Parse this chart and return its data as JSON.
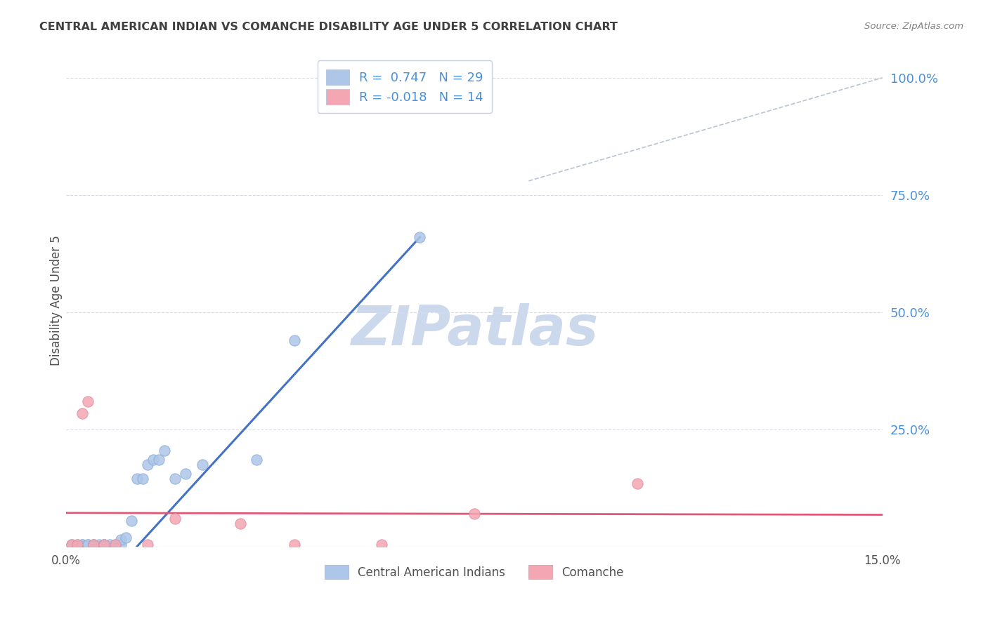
{
  "title": "CENTRAL AMERICAN INDIAN VS COMANCHE DISABILITY AGE UNDER 5 CORRELATION CHART",
  "source": "Source: ZipAtlas.com",
  "ylabel": "Disability Age Under 5",
  "right_yticks": [
    "100.0%",
    "75.0%",
    "50.0%",
    "25.0%"
  ],
  "right_ytick_vals": [
    1.0,
    0.75,
    0.5,
    0.25
  ],
  "legend1": [
    {
      "label": "R =  0.747   N = 29",
      "color": "#aec6e8"
    },
    {
      "label": "R = -0.018   N = 14",
      "color": "#f4a7b2"
    }
  ],
  "watermark": "ZIPatlas",
  "blue_scatter_x": [
    0.001,
    0.002,
    0.003,
    0.003,
    0.004,
    0.004,
    0.005,
    0.005,
    0.006,
    0.007,
    0.007,
    0.008,
    0.009,
    0.01,
    0.01,
    0.011,
    0.012,
    0.013,
    0.014,
    0.015,
    0.016,
    0.017,
    0.018,
    0.02,
    0.022,
    0.025,
    0.035,
    0.042,
    0.065
  ],
  "blue_scatter_y": [
    0.005,
    0.005,
    0.005,
    0.005,
    0.005,
    0.005,
    0.005,
    0.005,
    0.005,
    0.005,
    0.005,
    0.005,
    0.005,
    0.005,
    0.015,
    0.02,
    0.055,
    0.145,
    0.145,
    0.175,
    0.185,
    0.185,
    0.205,
    0.145,
    0.155,
    0.175,
    0.185,
    0.44,
    0.66
  ],
  "pink_scatter_x": [
    0.001,
    0.002,
    0.003,
    0.004,
    0.005,
    0.007,
    0.009,
    0.015,
    0.02,
    0.032,
    0.042,
    0.058,
    0.075,
    0.105
  ],
  "pink_scatter_y": [
    0.005,
    0.005,
    0.285,
    0.31,
    0.005,
    0.005,
    0.005,
    0.005,
    0.06,
    0.05,
    0.005,
    0.005,
    0.07,
    0.135
  ],
  "blue_line_x": [
    0.013,
    0.065
  ],
  "blue_line_y": [
    0.0,
    0.66
  ],
  "pink_line_x": [
    0.0,
    0.15
  ],
  "pink_line_y": [
    0.072,
    0.068
  ],
  "diag_line_x": [
    0.085,
    0.15
  ],
  "diag_line_y": [
    0.78,
    1.0
  ],
  "xlim": [
    0.0,
    0.15
  ],
  "ylim": [
    0.0,
    1.05
  ],
  "blue_color": "#aec6e8",
  "pink_color": "#f4a7b2",
  "blue_line_color": "#4472c4",
  "pink_line_color": "#e05878",
  "diag_color": "#b8c4d4",
  "grid_color": "#d8dce8",
  "title_color": "#404040",
  "right_axis_color": "#4a90d9",
  "watermark_color": "#ccd8ec",
  "background_color": "#ffffff"
}
